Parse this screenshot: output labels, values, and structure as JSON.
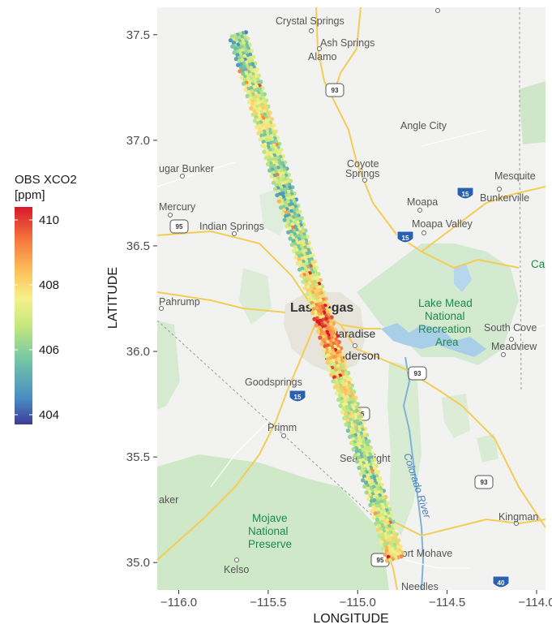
{
  "chart_data": {
    "type": "scatter",
    "subtype": "map-track",
    "xlabel": "LONGITUDE",
    "ylabel": "LATITUDE",
    "xlim": [
      -116.12,
      -113.95
    ],
    "ylim": [
      34.87,
      37.63
    ],
    "x_ticks": [
      -116.0,
      -115.5,
      -115.0,
      -114.5,
      -114.0
    ],
    "x_tick_labels": [
      "−116.0",
      "−115.5",
      "−115.0",
      "−114.5",
      "−114.0"
    ],
    "y_ticks": [
      35.0,
      35.5,
      36.0,
      36.5,
      37.0,
      37.5
    ],
    "y_tick_labels": [
      "35.0",
      "35.5",
      "36.0",
      "36.5",
      "37.0",
      "37.5"
    ],
    "legend": {
      "title_line1": "OBS XCO2",
      "title_line2": "[ppm]",
      "min": 403.7,
      "max": 410.4,
      "ticks": [
        404,
        406,
        408,
        410
      ],
      "tick_labels": [
        "404",
        "406",
        "408",
        "410"
      ],
      "placement": "left",
      "colors": [
        "#3d3c95",
        "#4a8cc4",
        "#74c7a5",
        "#c2e87e",
        "#f5f08a",
        "#fdc25c",
        "#f67d3f",
        "#d7192b"
      ]
    },
    "track": {
      "start": [
        -115.67,
        37.5
      ],
      "end": [
        -114.79,
        35.02
      ],
      "description_values": [
        {
          "lat": 37.45,
          "xco2": 405.8
        },
        {
          "lat": 37.3,
          "xco2": 406.5
        },
        {
          "lat": 37.15,
          "xco2": 407.2
        },
        {
          "lat": 37.0,
          "xco2": 406.6
        },
        {
          "lat": 36.85,
          "xco2": 406.2
        },
        {
          "lat": 36.7,
          "xco2": 405.9
        },
        {
          "lat": 36.55,
          "xco2": 406.5
        },
        {
          "lat": 36.4,
          "xco2": 406.8
        },
        {
          "lat": 36.3,
          "xco2": 407.6
        },
        {
          "lat": 36.2,
          "xco2": 408.6
        },
        {
          "lat": 36.12,
          "xco2": 409.3
        },
        {
          "lat": 36.05,
          "xco2": 409.0
        },
        {
          "lat": 35.95,
          "xco2": 407.8
        },
        {
          "lat": 35.85,
          "xco2": 407.4
        },
        {
          "lat": 35.7,
          "xco2": 407.0
        },
        {
          "lat": 35.55,
          "xco2": 406.3
        },
        {
          "lat": 35.4,
          "xco2": 406.4
        },
        {
          "lat": 35.25,
          "xco2": 406.6
        },
        {
          "lat": 35.1,
          "xco2": 407.2
        },
        {
          "lat": 35.03,
          "xco2": 408.2
        }
      ]
    }
  },
  "map_labels": {
    "crystal_springs": "Crystal Springs",
    "ash_springs": "Ash Springs",
    "alamo": "Alamo",
    "angle_city": "Angle City",
    "sugar_bunker": "ugar Bunker",
    "coyote_springs_1": "Coyote",
    "coyote_springs_2": "Springs",
    "mesquite": "Mesquite",
    "bunkerville": "Bunkerville",
    "moapa": "Moapa",
    "moapa_valley": "Moapa Valley",
    "mercury": "Mercury",
    "indian_springs": "Indian Springs",
    "pahrump": "Pahrump",
    "las_vegas": "Las Vegas",
    "paradise": "Paradise",
    "henderson": "Henderson",
    "lake_mead_1": "Lake Mead",
    "lake_mead_2": "National",
    "lake_mead_3": "Recreation",
    "lake_mead_4": "Area",
    "south_cove": "South Cove",
    "meadview": "Meadview",
    "goodsprings": "Goodsprings",
    "primm": "Primm",
    "searchlight": "Searchlight",
    "colorado_river": "Colorado River",
    "kingman": "Kingman",
    "mojave_1": "Mojave",
    "mojave_2": "National",
    "mojave_3": "Preserve",
    "baker": "aker",
    "kelso": "Kelso",
    "fort_mohave": "Fort Mohave",
    "needles": "Needles",
    "ca_partial": "Ca",
    "shield_93": "93",
    "shield_95": "95",
    "shield_15": "15",
    "shield_40": "40"
  }
}
